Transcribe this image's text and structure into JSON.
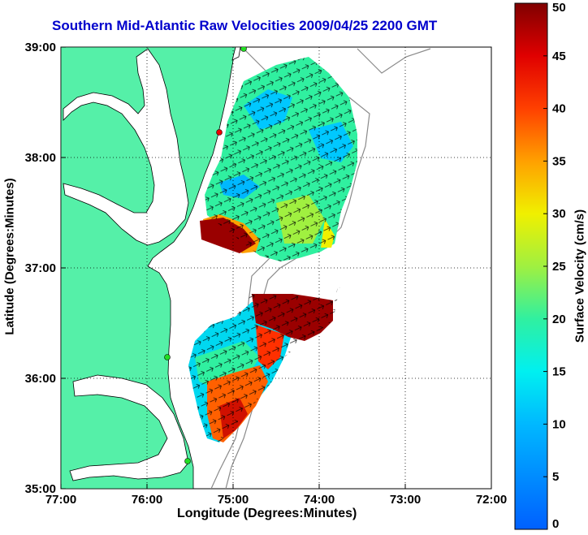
{
  "title": "Southern Mid-Atlantic Raw Velocities 2009/04/25 2200 GMT",
  "map": {
    "x_label": "Longitude (Degrees:Minutes)",
    "y_label": "Latitude (Degrees:Minutes)",
    "lon_range": [
      -77,
      -72
    ],
    "lat_range": [
      35,
      39
    ],
    "lon_ticks": [
      "77:00",
      "76:00",
      "75:00",
      "74:00",
      "73:00",
      "72:00"
    ],
    "lat_ticks": [
      "39:00",
      "38:00",
      "37:00",
      "36:00",
      "35:00"
    ],
    "land_color": "#55f0a8",
    "water_color": "#ffffff"
  },
  "colorbar": {
    "label": "Surface Velocity (cm/s)",
    "range": [
      0,
      50
    ],
    "ticks": [
      "0",
      "5",
      "10",
      "15",
      "20",
      "25",
      "30",
      "35",
      "40",
      "45",
      "50"
    ]
  }
}
